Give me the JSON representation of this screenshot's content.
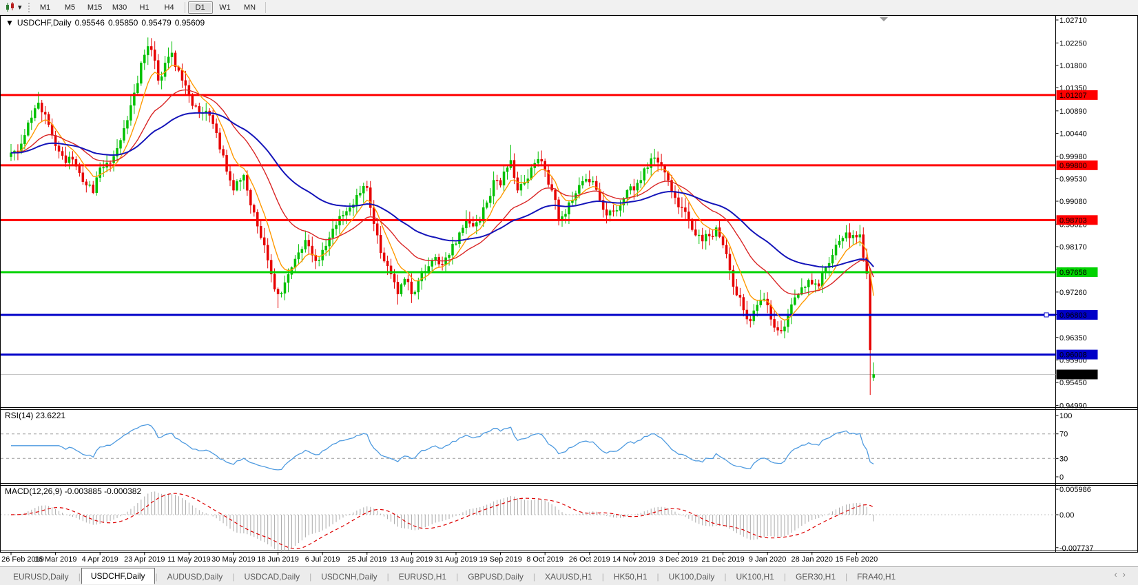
{
  "toolbar": {
    "timeframes": [
      {
        "label": "M1",
        "active": false
      },
      {
        "label": "M5",
        "active": false
      },
      {
        "label": "M15",
        "active": false
      },
      {
        "label": "M30",
        "active": false
      },
      {
        "label": "H1",
        "active": false
      },
      {
        "label": "H4",
        "active": false
      },
      {
        "label": "D1",
        "active": true
      },
      {
        "label": "W1",
        "active": false
      },
      {
        "label": "MN",
        "active": false
      }
    ],
    "dropdown_arrow_icon": "▾"
  },
  "chart": {
    "collapse_arrow_icon": "▼",
    "title": "USDCHF,Daily",
    "ohlc": {
      "open": "0.95546",
      "high": "0.95850",
      "low": "0.95479",
      "close": "0.95609"
    }
  },
  "rsi_panel": {
    "label": "RSI(14) 23.6221",
    "period": 14,
    "value": 23.6221,
    "line_color": "#4f9be0",
    "level_lines": [
      70,
      30
    ],
    "ticks": [
      {
        "label": "100",
        "value": 100
      },
      {
        "label": "70",
        "value": 70
      },
      {
        "label": "30",
        "value": 30
      },
      {
        "label": "0",
        "value": 0
      }
    ]
  },
  "macd_panel": {
    "label": "MACD(12,26,9) -0.003885 -0.000382",
    "fast": 12,
    "slow": 26,
    "signal_period": 9,
    "macd_value": -0.003885,
    "signal_value": -0.000382,
    "histogram_color": "#a9a9a9",
    "signal_color": "#dd0000",
    "ticks": [
      {
        "label": "0.005986",
        "value": 0.005986
      },
      {
        "label": "0.00",
        "value": 0
      },
      {
        "label": "-0.007737",
        "value": -0.007737
      }
    ]
  },
  "tabs": {
    "items": [
      {
        "label": "EURUSD,Daily",
        "active": false
      },
      {
        "label": "USDCHF,Daily",
        "active": true
      },
      {
        "label": "AUDUSD,Daily",
        "active": false
      },
      {
        "label": "USDCAD,Daily",
        "active": false
      },
      {
        "label": "USDCNH,Daily",
        "active": false
      },
      {
        "label": "EURUSD,H1",
        "active": false
      },
      {
        "label": "GBPUSD,Daily",
        "active": false
      },
      {
        "label": "XAUUSD,H1",
        "active": false
      },
      {
        "label": "HK50,H1",
        "active": false
      },
      {
        "label": "UK100,Daily",
        "active": false
      },
      {
        "label": "UK100,H1",
        "active": false
      },
      {
        "label": "GER30,H1",
        "active": false
      },
      {
        "label": "FRA40,H1",
        "active": false
      }
    ],
    "scroll_left_icon": "‹",
    "scroll_right_icon": "›"
  },
  "chart_data": {
    "type": "candlestick",
    "symbol": "USDCHF",
    "timeframe": "Daily",
    "current_ohlc": {
      "open": 0.95546,
      "high": 0.9585,
      "low": 0.95479,
      "close": 0.95609
    },
    "up_color": "#00c000",
    "down_color": "#e60000",
    "ylim": [
      0.9499,
      1.0281
    ],
    "y_ticks": [
      "1.02710",
      "1.02250",
      "1.01800",
      "1.01350",
      "1.00890",
      "1.00440",
      "0.99980",
      "0.99530",
      "0.99080",
      "0.98620",
      "0.98170",
      "0.97710",
      "0.97260",
      "0.96810",
      "0.96350",
      "0.95900",
      "0.95450",
      "0.94990"
    ],
    "x_axis_dates": [
      "26 Feb 2019",
      "16 Mar 2019",
      "4 Apr 2019",
      "23 Apr 2019",
      "11 May 2019",
      "30 May 2019",
      "18 Jun 2019",
      "6 Jul 2019",
      "25 Jul 2019",
      "13 Aug 2019",
      "31 Aug 2019",
      "19 Sep 2019",
      "8 Oct 2019",
      "26 Oct 2019",
      "14 Nov 2019",
      "3 Dec 2019",
      "21 Dec 2019",
      "9 Jan 2020",
      "28 Jan 2020",
      "15 Feb 2020"
    ],
    "candles_per_date_tick": 13,
    "candle_count": 253,
    "close_anchors": [
      [
        0,
        1.0005
      ],
      [
        2,
        1.0008
      ],
      [
        4,
        1.004
      ],
      [
        6,
        1.0075
      ],
      [
        8,
        1.0105
      ],
      [
        10,
        1.0082
      ],
      [
        12,
        1.004
      ],
      [
        14,
        1.0008
      ],
      [
        16,
        0.9985
      ],
      [
        18,
        0.9992
      ],
      [
        20,
        0.9965
      ],
      [
        22,
        0.994
      ],
      [
        24,
        0.9925
      ],
      [
        26,
        0.9975
      ],
      [
        28,
        0.9985
      ],
      [
        30,
        0.9998
      ],
      [
        32,
        1.003
      ],
      [
        34,
        1.007
      ],
      [
        36,
        1.0125
      ],
      [
        38,
        1.0185
      ],
      [
        40,
        1.0218
      ],
      [
        42,
        1.019
      ],
      [
        43,
        1.015
      ],
      [
        45,
        1.0185
      ],
      [
        47,
        1.0205
      ],
      [
        49,
        1.017
      ],
      [
        51,
        1.014
      ],
      [
        52,
        1.012
      ],
      [
        54,
        1.0098
      ],
      [
        56,
        1.0085
      ],
      [
        58,
        1.008
      ],
      [
        60,
        1.0045
      ],
      [
        62,
        1.0
      ],
      [
        64,
        0.995
      ],
      [
        65,
        0.993
      ],
      [
        67,
        0.995
      ],
      [
        68,
        0.996
      ],
      [
        70,
        0.99
      ],
      [
        72,
        0.9858
      ],
      [
        74,
        0.982
      ],
      [
        76,
        0.9762
      ],
      [
        78,
        0.9722
      ],
      [
        80,
        0.9745
      ],
      [
        82,
        0.9775
      ],
      [
        84,
        0.9805
      ],
      [
        86,
        0.983
      ],
      [
        88,
        0.98
      ],
      [
        90,
        0.979
      ],
      [
        91,
        0.981
      ],
      [
        93,
        0.9835
      ],
      [
        95,
        0.986
      ],
      [
        97,
        0.988
      ],
      [
        99,
        0.9895
      ],
      [
        101,
        0.992
      ],
      [
        103,
        0.9938
      ],
      [
        104,
        0.9935
      ],
      [
        105,
        0.9895
      ],
      [
        107,
        0.984
      ],
      [
        109,
        0.9788
      ],
      [
        111,
        0.9762
      ],
      [
        113,
        0.9722
      ],
      [
        115,
        0.9752
      ],
      [
        117,
        0.9722
      ],
      [
        119,
        0.9748
      ],
      [
        121,
        0.9768
      ],
      [
        123,
        0.979
      ],
      [
        125,
        0.9782
      ],
      [
        127,
        0.9795
      ],
      [
        129,
        0.9822
      ],
      [
        131,
        0.9845
      ],
      [
        133,
        0.987
      ],
      [
        135,
        0.9858
      ],
      [
        137,
        0.9868
      ],
      [
        139,
        0.9905
      ],
      [
        141,
        0.995
      ],
      [
        143,
        0.994
      ],
      [
        145,
        0.9975
      ],
      [
        146,
        0.999
      ],
      [
        148,
        0.993
      ],
      [
        150,
        0.9945
      ],
      [
        152,
        0.9975
      ],
      [
        154,
        0.9992
      ],
      [
        156,
        0.997
      ],
      [
        158,
        0.993
      ],
      [
        160,
        0.987
      ],
      [
        162,
        0.9882
      ],
      [
        164,
        0.991
      ],
      [
        166,
        0.994
      ],
      [
        168,
        0.9952
      ],
      [
        170,
        0.9948
      ],
      [
        172,
        0.991
      ],
      [
        174,
        0.988
      ],
      [
        176,
        0.9888
      ],
      [
        178,
        0.99
      ],
      [
        180,
        0.993
      ],
      [
        182,
        0.993
      ],
      [
        184,
        0.995
      ],
      [
        186,
        0.9975
      ],
      [
        188,
        0.9995
      ],
      [
        190,
        0.998
      ],
      [
        192,
        0.995
      ],
      [
        194,
        0.9915
      ],
      [
        196,
        0.9895
      ],
      [
        198,
        0.987
      ],
      [
        200,
        0.984
      ],
      [
        202,
        0.9828
      ],
      [
        204,
        0.9838
      ],
      [
        206,
        0.9855
      ],
      [
        208,
        0.982
      ],
      [
        210,
        0.977
      ],
      [
        212,
        0.972
      ],
      [
        214,
        0.969
      ],
      [
        216,
        0.9668
      ],
      [
        218,
        0.97
      ],
      [
        220,
        0.9712
      ],
      [
        221,
        0.97
      ],
      [
        223,
        0.9655
      ],
      [
        225,
        0.9648
      ],
      [
        227,
        0.968
      ],
      [
        229,
        0.9715
      ],
      [
        231,
        0.9735
      ],
      [
        233,
        0.975
      ],
      [
        234,
        0.9742
      ],
      [
        236,
        0.9738
      ],
      [
        238,
        0.9775
      ],
      [
        240,
        0.98
      ],
      [
        242,
        0.9828
      ],
      [
        244,
        0.9845
      ],
      [
        246,
        0.984
      ],
      [
        247,
        0.9836
      ],
      [
        248,
        0.9841
      ],
      [
        249,
        0.9795
      ],
      [
        250,
        0.9763
      ],
      [
        251,
        0.961
      ],
      [
        252,
        0.95609
      ]
    ],
    "wick_overrides": [
      {
        "i": 8,
        "h": 1.0127
      },
      {
        "i": 40,
        "h": 1.0236
      },
      {
        "i": 47,
        "h": 1.0228
      },
      {
        "i": 78,
        "l": 0.9694
      },
      {
        "i": 113,
        "l": 0.9701
      },
      {
        "i": 117,
        "l": 0.9704
      },
      {
        "i": 146,
        "h": 1.0021
      },
      {
        "i": 188,
        "h": 1.0013
      },
      {
        "i": 216,
        "l": 0.9655
      },
      {
        "i": 224,
        "l": 0.9639
      },
      {
        "i": 251,
        "l": 0.952
      }
    ],
    "final_candles": [
      {
        "o": 0.9763,
        "h": 0.9772,
        "l": 0.952,
        "c": 0.961
      },
      {
        "o": 0.95546,
        "h": 0.9585,
        "l": 0.95479,
        "c": 0.95609
      }
    ],
    "levels": [
      {
        "label": "1.01207",
        "value": 1.01207,
        "color": "#ff0000"
      },
      {
        "label": "0.99800",
        "value": 0.998,
        "color": "#ff0000"
      },
      {
        "label": "0.98703",
        "value": 0.98703,
        "color": "#ff0000"
      },
      {
        "label": "0.97658",
        "value": 0.97658,
        "color": "#00d200"
      },
      {
        "label": "0.96803",
        "value": 0.96803,
        "color": "#0000c8",
        "handle": true
      },
      {
        "label": "0.96008",
        "value": 0.96008,
        "color": "#0000c8"
      }
    ],
    "current_price": {
      "label": "0.95609",
      "value": 0.95609,
      "line_color": "#c6c6c6",
      "label_bg": "#000000"
    },
    "moving_averages": [
      {
        "name": "fast-ma",
        "period": 8,
        "color": "#ff9900",
        "width": 1.4
      },
      {
        "name": "mid-ma",
        "period": 24,
        "color": "#d92626",
        "width": 1.4
      },
      {
        "name": "slow-ma",
        "period": 55,
        "color": "#1414b9",
        "width": 2
      }
    ]
  }
}
